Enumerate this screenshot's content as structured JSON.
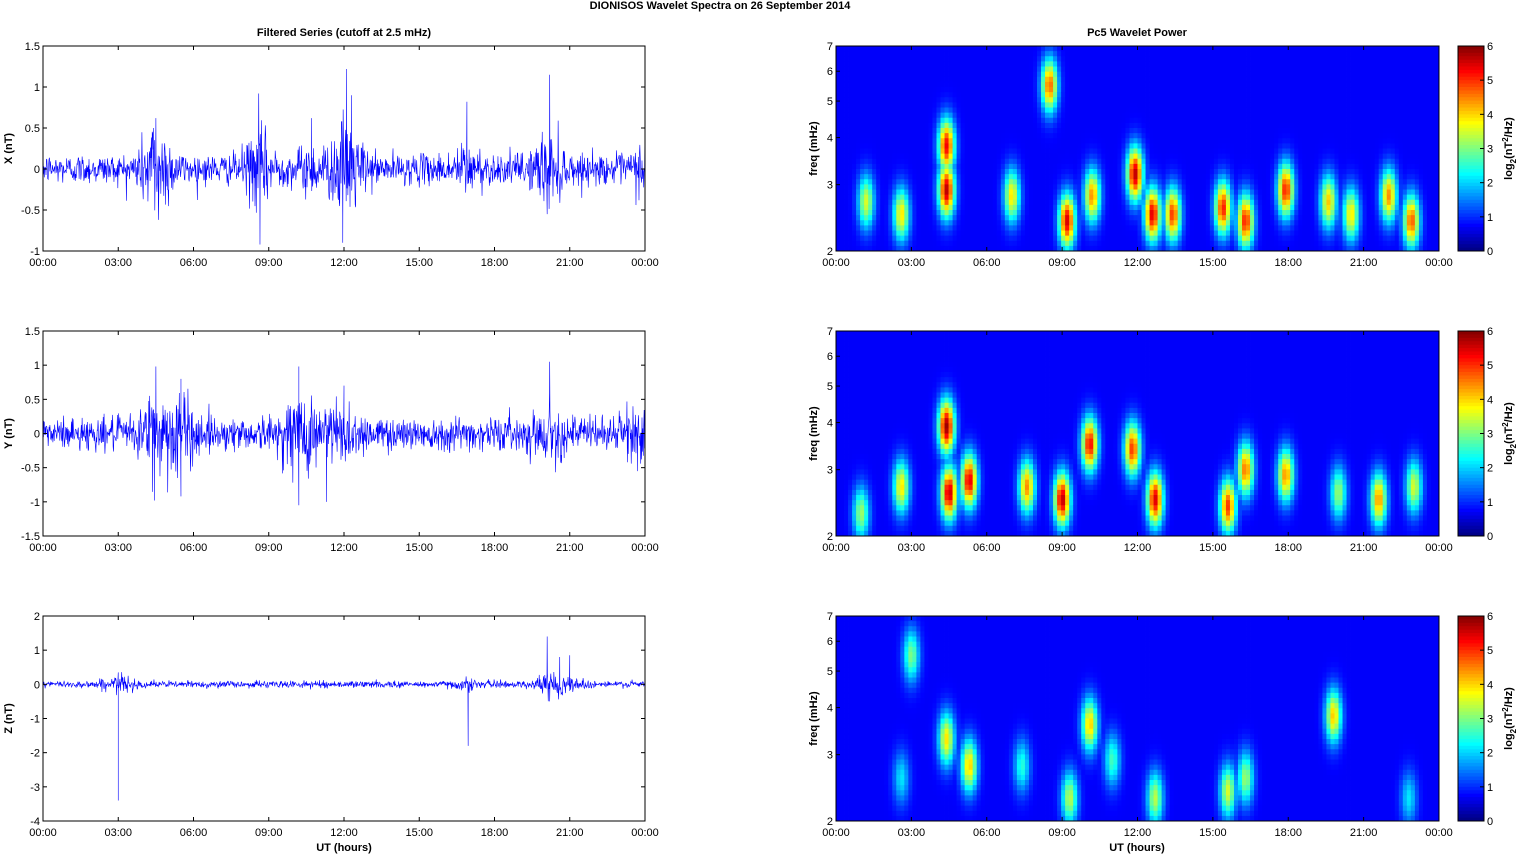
{
  "figure": {
    "title": "DIONISOS Wavelet Spectra on 26 September 2014",
    "left_title": "Filtered Series (cutoff at 2.5 mHz)",
    "right_title": "Pc5 Wavelet Power",
    "xlabel": "UT (hours)"
  },
  "chart_data": [
    {
      "type": "line",
      "ylabel": "X (nT)",
      "x_ticks": [
        "00:00",
        "03:00",
        "06:00",
        "09:00",
        "12:00",
        "15:00",
        "18:00",
        "21:00",
        "00:00"
      ],
      "xlim_hours": [
        0,
        24
      ],
      "ylim": [
        -1,
        1.5
      ],
      "y_ticks": [
        "-1",
        "-0.5",
        "0",
        "0.5",
        "1",
        "1.5"
      ],
      "series": [
        {
          "color": "#0000ff",
          "noise_std": 0.09,
          "spikes": [
            {
              "t": 4.5,
              "v": 0.62
            },
            {
              "t": 4.6,
              "v": -0.62
            },
            {
              "t": 4.4,
              "v": 0.5
            },
            {
              "t": 8.6,
              "v": 0.92
            },
            {
              "t": 8.65,
              "v": -0.92
            },
            {
              "t": 10.7,
              "v": 0.62
            },
            {
              "t": 12.1,
              "v": 1.22
            },
            {
              "t": 11.95,
              "v": -0.9
            },
            {
              "t": 12.3,
              "v": 0.9
            },
            {
              "t": 16.9,
              "v": 0.82
            },
            {
              "t": 20.2,
              "v": 1.15
            },
            {
              "t": 20.1,
              "v": -0.55
            },
            {
              "t": 24.0,
              "v": 0.55
            }
          ]
        }
      ]
    },
    {
      "type": "line",
      "ylabel": "Y (nT)",
      "x_ticks": [
        "00:00",
        "03:00",
        "06:00",
        "09:00",
        "12:00",
        "15:00",
        "18:00",
        "21:00",
        "00:00"
      ],
      "xlim_hours": [
        0,
        24
      ],
      "ylim": [
        -1.5,
        1.5
      ],
      "y_ticks": [
        "-1.5",
        "-1",
        "-0.5",
        "0",
        "0.5",
        "1",
        "1.5"
      ],
      "series": [
        {
          "color": "#0000ff",
          "noise_std": 0.12,
          "spikes": [
            {
              "t": 4.5,
              "v": 0.98
            },
            {
              "t": 4.45,
              "v": -0.98
            },
            {
              "t": 5.5,
              "v": 0.8
            },
            {
              "t": 5.5,
              "v": -0.92
            },
            {
              "t": 10.2,
              "v": 0.98
            },
            {
              "t": 10.2,
              "v": -1.05
            },
            {
              "t": 11.3,
              "v": -1.0
            },
            {
              "t": 12.0,
              "v": 0.7
            },
            {
              "t": 20.2,
              "v": 1.05
            },
            {
              "t": 23.7,
              "v": -0.55
            }
          ]
        }
      ]
    },
    {
      "type": "line",
      "ylabel": "Z (nT)",
      "x_ticks": [
        "00:00",
        "03:00",
        "06:00",
        "09:00",
        "12:00",
        "15:00",
        "18:00",
        "21:00",
        "00:00"
      ],
      "xlim_hours": [
        0,
        24
      ],
      "ylim": [
        -4,
        2
      ],
      "y_ticks": [
        "-4",
        "-3",
        "-2",
        "-1",
        "0",
        "1",
        "2"
      ],
      "series": [
        {
          "color": "#0000ff",
          "noise_std": 0.05,
          "spikes": [
            {
              "t": 3.0,
              "v": -3.4
            },
            {
              "t": 3.0,
              "v": 0.35
            },
            {
              "t": 16.95,
              "v": -1.8
            },
            {
              "t": 20.1,
              "v": 1.4
            },
            {
              "t": 20.2,
              "v": -0.5
            },
            {
              "t": 20.6,
              "v": 0.8
            },
            {
              "t": 21.0,
              "v": 0.85
            }
          ]
        }
      ]
    },
    {
      "type": "heatmap",
      "ylabel": "freq (mHz)",
      "ylim": [
        2,
        7
      ],
      "y_scale": "log",
      "y_ticks": [
        "2",
        "3",
        "4",
        "5",
        "6",
        "7"
      ],
      "x_ticks": [
        "00:00",
        "03:00",
        "06:00",
        "09:00",
        "12:00",
        "15:00",
        "18:00",
        "21:00",
        "00:00"
      ],
      "xlim_hours": [
        0,
        24
      ],
      "colorbar": {
        "label": "log2(nT2/Hz)",
        "range": [
          0,
          6
        ],
        "ticks": [
          "0",
          "1",
          "2",
          "3",
          "4",
          "5",
          "6"
        ],
        "colormap": "jet"
      },
      "blobs": [
        {
          "t": 4.4,
          "f": 2.9,
          "p": 5.6
        },
        {
          "t": 4.4,
          "f": 3.8,
          "p": 5.2
        },
        {
          "t": 8.5,
          "f": 5.5,
          "p": 4.5
        },
        {
          "t": 9.2,
          "f": 2.4,
          "p": 5.4
        },
        {
          "t": 11.9,
          "f": 3.2,
          "p": 5.6
        },
        {
          "t": 12.6,
          "f": 2.5,
          "p": 5.4
        },
        {
          "t": 13.4,
          "f": 2.5,
          "p": 4.8
        },
        {
          "t": 15.4,
          "f": 2.6,
          "p": 5.0
        },
        {
          "t": 16.3,
          "f": 2.4,
          "p": 5.0
        },
        {
          "t": 17.9,
          "f": 2.9,
          "p": 5.0
        },
        {
          "t": 10.2,
          "f": 2.8,
          "p": 4.2
        },
        {
          "t": 7.0,
          "f": 2.8,
          "p": 3.6
        },
        {
          "t": 19.6,
          "f": 2.7,
          "p": 3.8
        },
        {
          "t": 22.0,
          "f": 2.8,
          "p": 4.2
        },
        {
          "t": 22.9,
          "f": 2.4,
          "p": 4.6
        },
        {
          "t": 1.2,
          "f": 2.7,
          "p": 3.2
        },
        {
          "t": 2.6,
          "f": 2.5,
          "p": 3.6
        },
        {
          "t": 20.5,
          "f": 2.5,
          "p": 3.6
        }
      ]
    },
    {
      "type": "heatmap",
      "ylabel": "freq (mHz)",
      "ylim": [
        2,
        7
      ],
      "y_scale": "log",
      "y_ticks": [
        "2",
        "3",
        "4",
        "5",
        "6",
        "7"
      ],
      "x_ticks": [
        "00:00",
        "03:00",
        "06:00",
        "09:00",
        "12:00",
        "15:00",
        "18:00",
        "21:00",
        "00:00"
      ],
      "xlim_hours": [
        0,
        24
      ],
      "colorbar": {
        "label": "log2(nT2/Hz)",
        "range": [
          0,
          6
        ],
        "ticks": [
          "0",
          "1",
          "2",
          "3",
          "4",
          "5",
          "6"
        ],
        "colormap": "jet"
      },
      "blobs": [
        {
          "t": 4.4,
          "f": 3.9,
          "p": 5.8
        },
        {
          "t": 4.5,
          "f": 2.6,
          "p": 5.6
        },
        {
          "t": 5.3,
          "f": 2.8,
          "p": 5.4
        },
        {
          "t": 9.0,
          "f": 2.5,
          "p": 5.6
        },
        {
          "t": 10.1,
          "f": 3.5,
          "p": 5.2
        },
        {
          "t": 12.7,
          "f": 2.5,
          "p": 5.4
        },
        {
          "t": 11.8,
          "f": 3.4,
          "p": 4.8
        },
        {
          "t": 7.6,
          "f": 2.7,
          "p": 4.2
        },
        {
          "t": 15.6,
          "f": 2.4,
          "p": 4.8
        },
        {
          "t": 16.3,
          "f": 3.0,
          "p": 4.4
        },
        {
          "t": 17.9,
          "f": 2.9,
          "p": 4.2
        },
        {
          "t": 21.6,
          "f": 2.5,
          "p": 4.2
        },
        {
          "t": 2.6,
          "f": 2.7,
          "p": 3.6
        },
        {
          "t": 1.0,
          "f": 2.3,
          "p": 2.8
        },
        {
          "t": 20.0,
          "f": 2.6,
          "p": 2.8
        },
        {
          "t": 23.0,
          "f": 2.7,
          "p": 3.2
        }
      ]
    },
    {
      "type": "heatmap",
      "ylabel": "freq (mHz)",
      "ylim": [
        2,
        7
      ],
      "y_scale": "log",
      "y_ticks": [
        "2",
        "3",
        "4",
        "5",
        "6",
        "7"
      ],
      "x_ticks": [
        "00:00",
        "03:00",
        "06:00",
        "09:00",
        "12:00",
        "15:00",
        "18:00",
        "21:00",
        "00:00"
      ],
      "xlim_hours": [
        0,
        24
      ],
      "colorbar": {
        "label": "log2(nT2/Hz)",
        "range": [
          0,
          6
        ],
        "ticks": [
          "0",
          "1",
          "2",
          "3",
          "4",
          "5",
          "6"
        ],
        "colormap": "jet"
      },
      "blobs": [
        {
          "t": 4.4,
          "f": 3.3,
          "p": 3.6
        },
        {
          "t": 5.3,
          "f": 2.8,
          "p": 3.8
        },
        {
          "t": 10.1,
          "f": 3.6,
          "p": 3.8
        },
        {
          "t": 9.3,
          "f": 2.3,
          "p": 3.0
        },
        {
          "t": 12.7,
          "f": 2.3,
          "p": 3.0
        },
        {
          "t": 15.6,
          "f": 2.4,
          "p": 3.2
        },
        {
          "t": 16.3,
          "f": 2.6,
          "p": 2.8
        },
        {
          "t": 19.8,
          "f": 3.8,
          "p": 3.8
        },
        {
          "t": 7.4,
          "f": 2.8,
          "p": 2.0
        },
        {
          "t": 11.0,
          "f": 2.9,
          "p": 2.2
        },
        {
          "t": 2.6,
          "f": 2.6,
          "p": 1.6
        },
        {
          "t": 22.8,
          "f": 2.3,
          "p": 1.6
        },
        {
          "t": 3.0,
          "f": 5.5,
          "p": 2.6
        }
      ]
    }
  ]
}
